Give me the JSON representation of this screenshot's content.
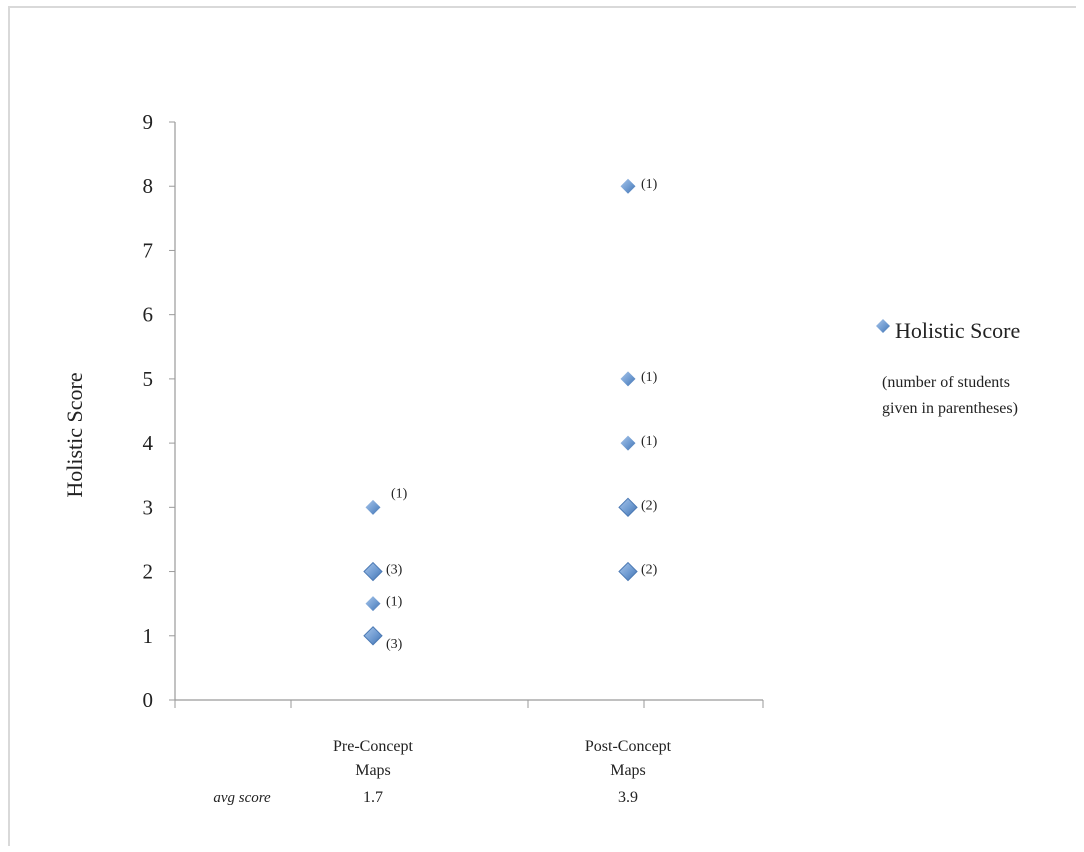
{
  "chart_data": {
    "type": "scatter",
    "title": "",
    "ylabel": "Holistic Score",
    "xlabel": "",
    "ylim": [
      0,
      9
    ],
    "yticks": [
      "0",
      "1",
      "2",
      "3",
      "4",
      "5",
      "6",
      "7",
      "8",
      "9"
    ],
    "categories": [
      {
        "lines": [
          "Pre-Concept",
          "Maps"
        ],
        "avg": "1.7"
      },
      {
        "lines": [
          "Post-Concept",
          "Maps"
        ],
        "avg": "3.9"
      }
    ],
    "avg_label": "avg score",
    "series": [
      {
        "name": "Holistic Score",
        "points": [
          {
            "category": 0,
            "y": 3,
            "count": "(1)"
          },
          {
            "category": 0,
            "y": 2,
            "count": "(3)"
          },
          {
            "category": 0,
            "y": 1.5,
            "count": "(1)"
          },
          {
            "category": 0,
            "y": 1,
            "count": "(3)"
          },
          {
            "category": 1,
            "y": 8,
            "count": "(1)"
          },
          {
            "category": 1,
            "y": 5,
            "count": "(1)"
          },
          {
            "category": 1,
            "y": 4,
            "count": "(1)"
          },
          {
            "category": 1,
            "y": 3,
            "count": "(2)"
          },
          {
            "category": 1,
            "y": 2,
            "count": "(2)"
          }
        ]
      }
    ],
    "legend": {
      "position": "right",
      "entry": "Holistic Score",
      "note_lines": [
        "(number of students",
        "given in parentheses)"
      ]
    },
    "marker_color": "#6f9bd1",
    "grid": false
  }
}
